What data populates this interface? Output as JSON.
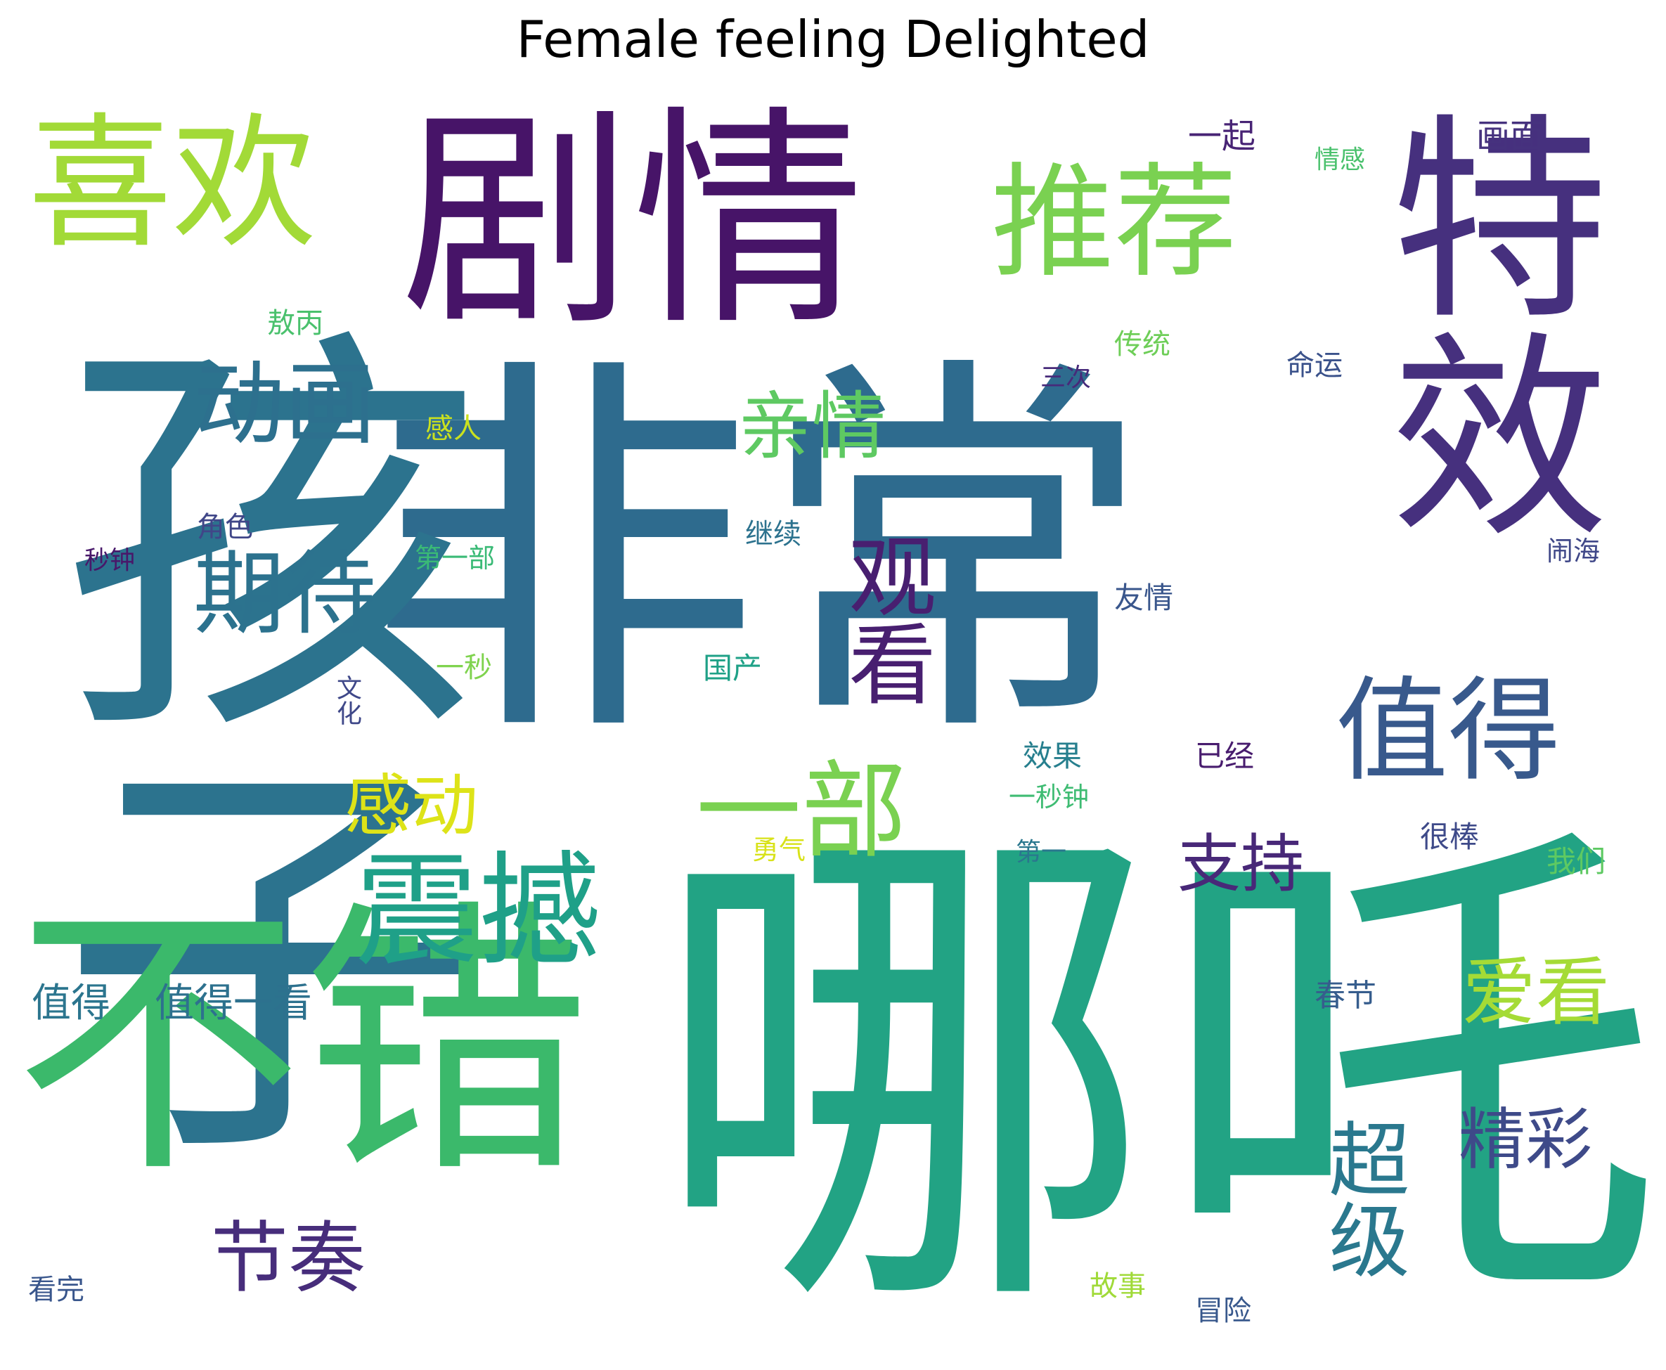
{
  "title": "Female feeling Delighted",
  "words": [
    {
      "text": "哪吒",
      "color": "#22a384",
      "weight": 1.0
    },
    {
      "text": "非常",
      "color": "#2e6b8e",
      "weight": 0.98
    },
    {
      "text": "孩子",
      "color": "#2c738e",
      "weight": 0.9
    },
    {
      "text": "剧情",
      "color": "#471468",
      "weight": 0.72
    },
    {
      "text": "不错",
      "color": "#3bb96b",
      "weight": 0.7
    },
    {
      "text": "特效",
      "color": "#46307e",
      "weight": 0.68
    },
    {
      "text": "喜欢",
      "color": "#a2da37",
      "weight": 0.52
    },
    {
      "text": "推荐",
      "color": "#7ad151",
      "weight": 0.45
    },
    {
      "text": "震撼",
      "color": "#1fa088",
      "weight": 0.38
    },
    {
      "text": "值得",
      "color": "#38598c",
      "weight": 0.35
    },
    {
      "text": "一部",
      "color": "#7ad151",
      "weight": 0.32
    },
    {
      "text": "观看",
      "color": "#481f70",
      "weight": 0.28
    },
    {
      "text": "动画",
      "color": "#2d708e",
      "weight": 0.28
    },
    {
      "text": "期待",
      "color": "#2c728e",
      "weight": 0.28
    },
    {
      "text": "超级",
      "color": "#2a788e",
      "weight": 0.26
    },
    {
      "text": "节奏",
      "color": "#472d7b",
      "weight": 0.25
    },
    {
      "text": "亲情",
      "color": "#5ec962",
      "weight": 0.22
    },
    {
      "text": "爱看",
      "color": "#a5db36",
      "weight": 0.22
    },
    {
      "text": "感动",
      "color": "#dde318",
      "weight": 0.2
    },
    {
      "text": "精彩",
      "color": "#3e4a89",
      "weight": 0.2
    },
    {
      "text": "支持",
      "color": "#482878",
      "weight": 0.19
    },
    {
      "text": "值得",
      "color": "#2b758e",
      "weight": 0.11
    },
    {
      "text": "值得一看",
      "color": "#2d718e",
      "weight": 0.11
    },
    {
      "text": "一起",
      "color": "#482475",
      "weight": 0.09
    },
    {
      "text": "画面",
      "color": "#46327e",
      "weight": 0.09
    },
    {
      "text": "春节",
      "color": "#365d8d",
      "weight": 0.08
    },
    {
      "text": "很棒",
      "color": "#3e4a89",
      "weight": 0.07
    },
    {
      "text": "我们",
      "color": "#5ec962",
      "weight": 0.07
    },
    {
      "text": "效果",
      "color": "#277f8e",
      "weight": 0.07
    },
    {
      "text": "已经",
      "color": "#481c6e",
      "weight": 0.07
    },
    {
      "text": "友情",
      "color": "#39568c",
      "weight": 0.07
    },
    {
      "text": "国产",
      "color": "#1fa187",
      "weight": 0.07
    },
    {
      "text": "继续",
      "color": "#2c728e",
      "weight": 0.06
    },
    {
      "text": "角色",
      "color": "#404688",
      "weight": 0.06
    },
    {
      "text": "故事",
      "color": "#a0da39",
      "weight": 0.06
    },
    {
      "text": "冒险",
      "color": "#38588c",
      "weight": 0.06
    },
    {
      "text": "看完",
      "color": "#39568c",
      "weight": 0.06
    },
    {
      "text": "命运",
      "color": "#3b528b",
      "weight": 0.06
    },
    {
      "text": "敖丙",
      "color": "#4ac16d",
      "weight": 0.06
    },
    {
      "text": "传统",
      "color": "#6ece58",
      "weight": 0.06
    },
    {
      "text": "感人",
      "color": "#cae11f",
      "weight": 0.06
    },
    {
      "text": "一秒",
      "color": "#7fd34e",
      "weight": 0.06
    },
    {
      "text": "第一部",
      "color": "#3aba76",
      "weight": 0.06
    },
    {
      "text": "一秒钟",
      "color": "#3fbc73",
      "weight": 0.06
    },
    {
      "text": "勇气",
      "color": "#d8e219",
      "weight": 0.06
    },
    {
      "text": "闹海",
      "color": "#3f4788",
      "weight": 0.05
    },
    {
      "text": "秒钟",
      "color": "#48186a",
      "weight": 0.05
    },
    {
      "text": "情感",
      "color": "#4ac16d",
      "weight": 0.05
    },
    {
      "text": "三次",
      "color": "#472a7a",
      "weight": 0.05
    },
    {
      "text": "第一",
      "color": "#2a778e",
      "weight": 0.05
    },
    {
      "text": "文化",
      "color": "#3f4889",
      "weight": 0.05
    }
  ]
}
